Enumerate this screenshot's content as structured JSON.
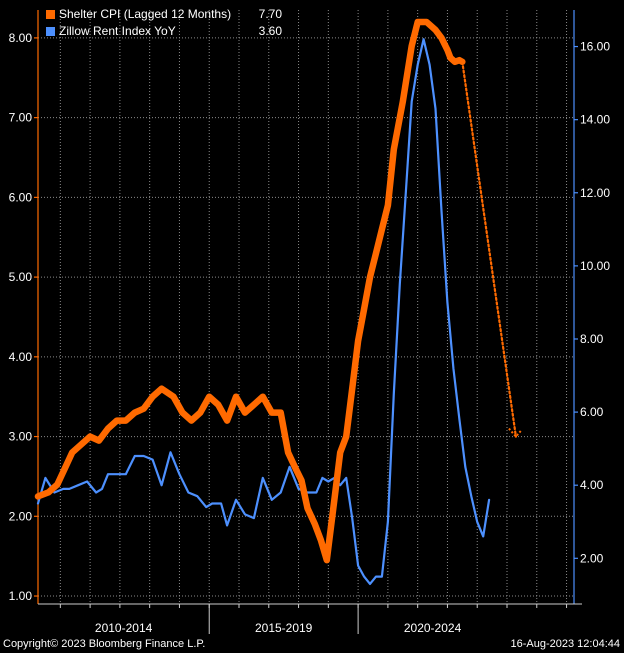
{
  "chart_data": {
    "type": "line",
    "xlim": [
      2009.25,
      2027.25
    ],
    "x_bands": [
      {
        "label": "2010-2014",
        "range": [
          2009.25,
          2015.0
        ]
      },
      {
        "label": "2015-2019",
        "range": [
          2015.0,
          2020.0
        ]
      },
      {
        "label": "2020-2024",
        "range": [
          2020.0,
          2025.0
        ]
      }
    ],
    "left_axis": {
      "ylim": [
        0.9,
        8.35
      ],
      "ticks": [
        1.0,
        2.0,
        3.0,
        4.0,
        5.0,
        6.0,
        7.0,
        8.0
      ],
      "tick_labels": [
        "1.00",
        "2.00",
        "3.00",
        "4.00",
        "5.00",
        "6.00",
        "7.00",
        "8.00"
      ],
      "color": "#ff6a00"
    },
    "right_axis": {
      "ylim": [
        0.75,
        17.0
      ],
      "ticks": [
        2,
        4,
        6,
        8,
        10,
        12,
        14,
        16
      ],
      "tick_labels": [
        "2.00",
        "4.00",
        "6.00",
        "8.00",
        "10.00",
        "12.00",
        "14.00",
        "16.00"
      ],
      "color": "#4d90fe"
    },
    "grid": true,
    "legend_position": "top-left",
    "series": [
      {
        "name": "Shelter CPI (Lagged 12 Months)",
        "last_value": "7.70",
        "axis": "left",
        "color": "#ff6a00",
        "x": [
          2009.25,
          2009.6,
          2009.9,
          2010.15,
          2010.4,
          2010.7,
          2011.0,
          2011.3,
          2011.6,
          2011.9,
          2012.2,
          2012.5,
          2012.8,
          2013.1,
          2013.4,
          2013.8,
          2014.1,
          2014.4,
          2014.7,
          2015.0,
          2015.3,
          2015.6,
          2015.9,
          2016.2,
          2016.5,
          2016.8,
          2017.1,
          2017.4,
          2017.65,
          2017.9,
          2018.1,
          2018.3,
          2018.55,
          2018.75,
          2018.95,
          2019.2,
          2019.4,
          2019.6,
          2019.8,
          2020.0,
          2020.2,
          2020.4,
          2020.6,
          2020.8,
          2021.0,
          2021.2,
          2021.5,
          2021.8,
          2022.0,
          2022.3,
          2022.6,
          2022.8,
          2023.0,
          2023.1,
          2023.25,
          2023.4,
          2023.5
        ],
        "values": [
          2.25,
          2.3,
          2.4,
          2.6,
          2.8,
          2.9,
          3.0,
          2.95,
          3.1,
          3.2,
          3.2,
          3.3,
          3.35,
          3.5,
          3.6,
          3.5,
          3.3,
          3.2,
          3.3,
          3.5,
          3.4,
          3.2,
          3.5,
          3.3,
          3.4,
          3.5,
          3.3,
          3.3,
          2.8,
          2.6,
          2.45,
          2.1,
          1.9,
          1.7,
          1.45,
          2.2,
          2.8,
          3.0,
          3.6,
          4.2,
          4.6,
          5.0,
          5.3,
          5.6,
          5.9,
          6.6,
          7.2,
          7.9,
          8.2,
          8.2,
          8.1,
          8.0,
          7.85,
          7.75,
          7.7,
          7.72,
          7.7
        ]
      },
      {
        "name": "Zillow Rent Index YoY",
        "last_value": "3.60",
        "axis": "right",
        "color": "#4d90fe",
        "x": [
          2009.25,
          2009.5,
          2009.8,
          2010.1,
          2010.3,
          2010.6,
          2010.9,
          2011.2,
          2011.4,
          2011.6,
          2011.9,
          2012.2,
          2012.5,
          2012.8,
          2013.1,
          2013.4,
          2013.7,
          2014.0,
          2014.3,
          2014.6,
          2014.9,
          2015.1,
          2015.4,
          2015.6,
          2015.9,
          2016.2,
          2016.5,
          2016.8,
          2017.1,
          2017.4,
          2017.7,
          2018.0,
          2018.3,
          2018.6,
          2018.8,
          2019.0,
          2019.2,
          2019.4,
          2019.6,
          2019.8,
          2020.0,
          2020.2,
          2020.4,
          2020.6,
          2020.8,
          2021.0,
          2021.2,
          2021.4,
          2021.6,
          2021.8,
          2022.0,
          2022.2,
          2022.4,
          2022.6,
          2022.8,
          2023.0,
          2023.2,
          2023.4,
          2023.6,
          2023.8,
          2024.0,
          2024.2,
          2024.4
        ],
        "values": [
          3.5,
          4.2,
          3.8,
          3.9,
          3.9,
          4.0,
          4.1,
          3.8,
          3.9,
          4.3,
          4.3,
          4.3,
          4.8,
          4.8,
          4.7,
          4.0,
          4.9,
          4.3,
          3.8,
          3.7,
          3.4,
          3.5,
          3.5,
          2.9,
          3.6,
          3.2,
          3.1,
          4.2,
          3.6,
          3.8,
          4.5,
          3.9,
          3.8,
          3.8,
          4.2,
          4.1,
          4.2,
          4.0,
          4.2,
          3.1,
          1.8,
          1.5,
          1.3,
          1.5,
          1.5,
          3.0,
          6.5,
          9.5,
          12.0,
          14.5,
          15.5,
          16.2,
          15.5,
          14.3,
          11.5,
          9.0,
          7.2,
          5.8,
          4.5,
          3.7,
          3.0,
          2.6,
          3.6
        ]
      },
      {
        "name": "",
        "style": "dotted",
        "axis": "left",
        "color": "#ff6a00",
        "x": [
          2023.5,
          2025.3
        ],
        "values": [
          7.7,
          3.0
        ]
      }
    ]
  },
  "legend": {
    "items": [
      {
        "name": "Shelter CPI (Lagged 12 Months)",
        "value": "7.70",
        "color": "#ff6a00"
      },
      {
        "name": "Zillow Rent Index YoY",
        "value": "3.60",
        "color": "#4d90fe"
      }
    ]
  },
  "footer": {
    "copyright": "Copyright© 2023 Bloomberg Finance L.P.",
    "timestamp": "16-Aug-2023 12:04:44"
  }
}
